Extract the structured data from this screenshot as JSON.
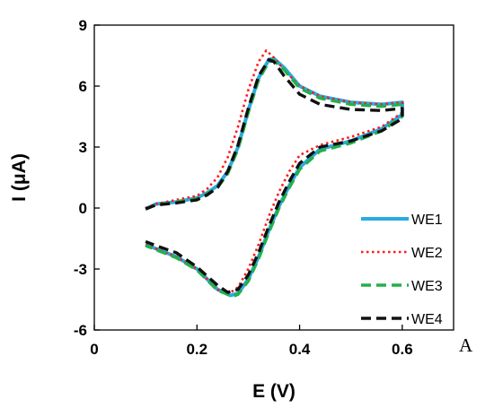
{
  "chart_data": {
    "type": "line",
    "title": "",
    "xlabel": "E (V)",
    "ylabel": "I (μA)",
    "xlim": [
      0,
      0.7
    ],
    "ylim": [
      -6,
      9
    ],
    "xticks": [
      0,
      0.2,
      0.4,
      0.6
    ],
    "xtick_labels": [
      "0",
      "0.2",
      "0.4",
      "0.6"
    ],
    "yticks": [
      -6,
      -3,
      0,
      3,
      6,
      9
    ],
    "ytick_labels": [
      "-6",
      "-3",
      "0",
      "3",
      "6",
      "9"
    ],
    "grid": false,
    "legend_position": "bottom-right",
    "panel_label": "A",
    "series": [
      {
        "name": "WE1",
        "color": "#29abe2",
        "dash": "solid",
        "forward": [
          [
            0.1,
            -0.05
          ],
          [
            0.12,
            0.2
          ],
          [
            0.16,
            0.3
          ],
          [
            0.2,
            0.5
          ],
          [
            0.22,
            0.75
          ],
          [
            0.24,
            1.1
          ],
          [
            0.26,
            1.8
          ],
          [
            0.28,
            3.0
          ],
          [
            0.3,
            4.8
          ],
          [
            0.32,
            6.4
          ],
          [
            0.34,
            7.3
          ],
          [
            0.35,
            7.35
          ],
          [
            0.37,
            6.9
          ],
          [
            0.4,
            6.0
          ],
          [
            0.44,
            5.5
          ],
          [
            0.5,
            5.2
          ],
          [
            0.56,
            5.1
          ],
          [
            0.6,
            5.2
          ]
        ],
        "reverse": [
          [
            0.6,
            5.2
          ],
          [
            0.6,
            4.6
          ],
          [
            0.56,
            3.9
          ],
          [
            0.5,
            3.3
          ],
          [
            0.44,
            2.9
          ],
          [
            0.4,
            2.0
          ],
          [
            0.38,
            1.1
          ],
          [
            0.36,
            0.1
          ],
          [
            0.34,
            -1.1
          ],
          [
            0.32,
            -2.4
          ],
          [
            0.3,
            -3.5
          ],
          [
            0.28,
            -4.2
          ],
          [
            0.265,
            -4.3
          ],
          [
            0.24,
            -4.0
          ],
          [
            0.2,
            -3.0
          ],
          [
            0.16,
            -2.4
          ],
          [
            0.12,
            -2.0
          ],
          [
            0.1,
            -1.8
          ]
        ]
      },
      {
        "name": "WE2",
        "color": "#ff1a1a",
        "dash": "dotted",
        "forward": [
          [
            0.1,
            0.0
          ],
          [
            0.12,
            0.2
          ],
          [
            0.16,
            0.4
          ],
          [
            0.2,
            0.6
          ],
          [
            0.22,
            0.95
          ],
          [
            0.24,
            1.5
          ],
          [
            0.26,
            2.5
          ],
          [
            0.28,
            4.0
          ],
          [
            0.3,
            5.8
          ],
          [
            0.32,
            7.2
          ],
          [
            0.335,
            7.75
          ],
          [
            0.35,
            7.4
          ],
          [
            0.37,
            6.8
          ],
          [
            0.4,
            6.0
          ],
          [
            0.44,
            5.5
          ],
          [
            0.5,
            5.2
          ],
          [
            0.56,
            5.1
          ],
          [
            0.6,
            5.2
          ]
        ],
        "reverse": [
          [
            0.6,
            5.2
          ],
          [
            0.6,
            4.7
          ],
          [
            0.56,
            4.0
          ],
          [
            0.5,
            3.5
          ],
          [
            0.44,
            3.1
          ],
          [
            0.4,
            2.6
          ],
          [
            0.38,
            1.8
          ],
          [
            0.36,
            0.8
          ],
          [
            0.34,
            -0.4
          ],
          [
            0.32,
            -1.8
          ],
          [
            0.3,
            -3.0
          ],
          [
            0.28,
            -3.9
          ],
          [
            0.26,
            -4.25
          ],
          [
            0.24,
            -4.0
          ],
          [
            0.2,
            -3.0
          ],
          [
            0.16,
            -2.4
          ],
          [
            0.12,
            -2.0
          ],
          [
            0.1,
            -1.8
          ]
        ]
      },
      {
        "name": "WE3",
        "color": "#22b04b",
        "dash": "dashed",
        "forward": [
          [
            0.1,
            -0.05
          ],
          [
            0.12,
            0.15
          ],
          [
            0.16,
            0.3
          ],
          [
            0.2,
            0.45
          ],
          [
            0.22,
            0.7
          ],
          [
            0.24,
            1.0
          ],
          [
            0.26,
            1.7
          ],
          [
            0.28,
            2.9
          ],
          [
            0.3,
            4.7
          ],
          [
            0.32,
            6.3
          ],
          [
            0.34,
            7.2
          ],
          [
            0.35,
            7.25
          ],
          [
            0.37,
            6.8
          ],
          [
            0.4,
            5.9
          ],
          [
            0.44,
            5.4
          ],
          [
            0.5,
            5.1
          ],
          [
            0.56,
            5.0
          ],
          [
            0.6,
            5.1
          ]
        ],
        "reverse": [
          [
            0.6,
            5.1
          ],
          [
            0.6,
            4.5
          ],
          [
            0.56,
            3.8
          ],
          [
            0.5,
            3.2
          ],
          [
            0.44,
            2.8
          ],
          [
            0.4,
            1.9
          ],
          [
            0.38,
            1.0
          ],
          [
            0.36,
            0.0
          ],
          [
            0.34,
            -1.2
          ],
          [
            0.32,
            -2.5
          ],
          [
            0.3,
            -3.6
          ],
          [
            0.28,
            -4.25
          ],
          [
            0.27,
            -4.35
          ],
          [
            0.24,
            -4.05
          ],
          [
            0.2,
            -3.05
          ],
          [
            0.16,
            -2.45
          ],
          [
            0.12,
            -2.05
          ],
          [
            0.1,
            -1.85
          ]
        ]
      },
      {
        "name": "WE4",
        "color": "#111111",
        "dash": "dashed",
        "forward": [
          [
            0.1,
            -0.05
          ],
          [
            0.12,
            0.15
          ],
          [
            0.16,
            0.25
          ],
          [
            0.2,
            0.4
          ],
          [
            0.22,
            0.65
          ],
          [
            0.24,
            1.0
          ],
          [
            0.26,
            1.8
          ],
          [
            0.28,
            3.1
          ],
          [
            0.3,
            4.9
          ],
          [
            0.32,
            6.5
          ],
          [
            0.34,
            7.3
          ],
          [
            0.35,
            7.2
          ],
          [
            0.37,
            6.5
          ],
          [
            0.4,
            5.6
          ],
          [
            0.44,
            5.1
          ],
          [
            0.5,
            4.85
          ],
          [
            0.56,
            4.8
          ],
          [
            0.6,
            4.9
          ]
        ],
        "reverse": [
          [
            0.6,
            4.9
          ],
          [
            0.6,
            4.4
          ],
          [
            0.56,
            3.8
          ],
          [
            0.5,
            3.3
          ],
          [
            0.44,
            3.0
          ],
          [
            0.4,
            2.2
          ],
          [
            0.38,
            1.3
          ],
          [
            0.36,
            0.3
          ],
          [
            0.34,
            -0.9
          ],
          [
            0.32,
            -2.2
          ],
          [
            0.3,
            -3.3
          ],
          [
            0.28,
            -4.0
          ],
          [
            0.26,
            -4.15
          ],
          [
            0.24,
            -3.8
          ],
          [
            0.2,
            -2.9
          ],
          [
            0.16,
            -2.2
          ],
          [
            0.12,
            -1.85
          ],
          [
            0.1,
            -1.65
          ]
        ]
      }
    ]
  }
}
